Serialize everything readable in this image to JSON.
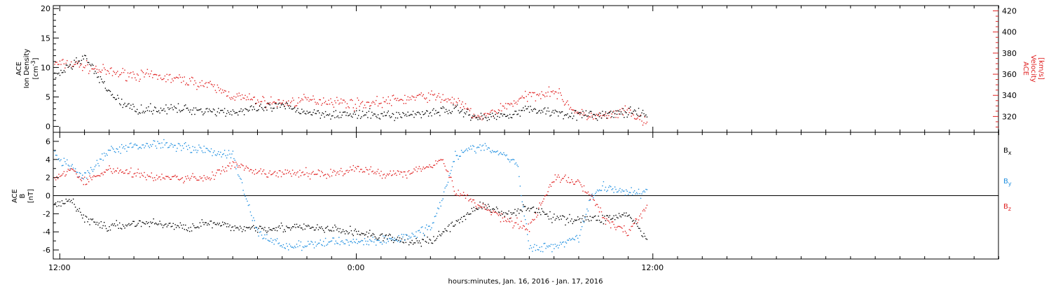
{
  "colors": {
    "black": "#000000",
    "red": "#e02020",
    "blue": "#1f8fe0"
  },
  "xaxis": {
    "label": "hours:minutes, Jan. 16, 2016 - Jan. 17, 2016",
    "ticks": [
      "12:00",
      "0:00",
      "12:00"
    ],
    "tick_hours": [
      12,
      24,
      36
    ],
    "range_hours": [
      11.75,
      50
    ]
  },
  "top_panel": {
    "left_label_line1": "ACE",
    "left_label_line2": "Ion Density",
    "left_label_line3": "[cm",
    "left_label_sup": "-3",
    "left_label_end": "]",
    "right_label_line1": "ACE",
    "right_label_line2": "Velocity",
    "right_label_line3": "[km/s]",
    "left_ticks": [
      "0",
      "5",
      "10",
      "15",
      "20"
    ],
    "right_ticks": [
      "320",
      "340",
      "360",
      "380",
      "400",
      "420"
    ]
  },
  "bottom_panel": {
    "left_label_line1": "ACE",
    "left_label_line2": "B",
    "left_label_line3": "[nT]",
    "ticks": [
      "-6",
      "-4",
      "-2",
      "0",
      "2",
      "4",
      "6"
    ],
    "legend": [
      {
        "name": "B",
        "sub": "x"
      },
      {
        "name": "B",
        "sub": "y"
      },
      {
        "name": "B",
        "sub": "z"
      }
    ]
  },
  "chart_data": [
    {
      "type": "scatter",
      "panel": "top",
      "xlabel": "hours:minutes, Jan. 16, 2016 - Jan. 17, 2016",
      "ylabel": "ACE Ion Density [cm^-3]",
      "ylabel_right": "ACE Velocity [km/s]",
      "ylim": [
        -1,
        20.5
      ],
      "ylim_right": [
        305,
        425
      ],
      "series": [
        {
          "name": "Ion Density",
          "axis": "left",
          "x": [
            11.75,
            12.5,
            13.0,
            13.3,
            13.6,
            14.0,
            14.5,
            15.0,
            16.0,
            17.0,
            18.0,
            19.0,
            20.0,
            21.0,
            22.0,
            23.0,
            24.0,
            25.0,
            26.0,
            27.0,
            28.0,
            29.0,
            30.0,
            31.0,
            32.0,
            33.0,
            34.0,
            35.0,
            35.8
          ],
          "values": [
            8.5,
            10.5,
            12.0,
            10.0,
            8.0,
            6.0,
            4.0,
            3.0,
            3.0,
            3.0,
            2.8,
            2.5,
            3.0,
            3.5,
            2.5,
            2.2,
            2.0,
            2.0,
            2.0,
            2.5,
            3.0,
            1.5,
            2.0,
            3.0,
            2.5,
            2.0,
            2.0,
            2.5,
            2.0
          ]
        },
        {
          "name": "Velocity",
          "axis": "right",
          "x": [
            11.75,
            12.5,
            13.0,
            14.0,
            15.0,
            16.0,
            17.0,
            18.0,
            19.0,
            20.0,
            21.0,
            22.0,
            23.0,
            24.0,
            25.0,
            26.0,
            27.0,
            28.0,
            29.0,
            30.0,
            31.0,
            32.0,
            33.0,
            34.0,
            35.0,
            35.8
          ],
          "values": [
            370,
            370,
            368,
            362,
            360,
            358,
            355,
            350,
            340,
            335,
            333,
            336,
            335,
            332,
            334,
            337,
            340,
            335,
            318,
            330,
            340,
            345,
            322,
            320,
            325,
            312
          ]
        }
      ]
    },
    {
      "type": "scatter",
      "panel": "bottom",
      "xlabel": "hours:minutes, Jan. 16, 2016 - Jan. 17, 2016",
      "ylabel": "ACE B [nT]",
      "ylim": [
        -7,
        7
      ],
      "series": [
        {
          "name": "Bx",
          "x": [
            11.75,
            12.5,
            13.0,
            14.0,
            15.0,
            16.0,
            17.0,
            18.0,
            19.0,
            20.0,
            21.0,
            22.0,
            23.0,
            24.0,
            25.0,
            26.0,
            27.0,
            28.0,
            29.0,
            30.0,
            31.0,
            32.0,
            33.0,
            34.0,
            35.0,
            35.8
          ],
          "values": [
            -1.0,
            -0.5,
            -2.5,
            -3.5,
            -3.0,
            -3.0,
            -3.5,
            -3.0,
            -3.5,
            -3.5,
            -3.5,
            -3.5,
            -3.7,
            -4.0,
            -4.5,
            -5.0,
            -5.0,
            -3.0,
            -1.0,
            -2.0,
            -1.2,
            -2.5,
            -2.5,
            -2.5,
            -2.0,
            -5.0
          ]
        },
        {
          "name": "By",
          "x": [
            11.75,
            12.5,
            13.0,
            14.0,
            15.0,
            16.0,
            17.0,
            18.0,
            19.0,
            19.5,
            20.0,
            21.0,
            22.0,
            23.0,
            24.0,
            25.0,
            26.0,
            27.0,
            27.5,
            28.0,
            29.0,
            30.0,
            30.5,
            31.0,
            32.0,
            33.0,
            33.5,
            34.0,
            35.0,
            35.8
          ],
          "values": [
            4.5,
            3.0,
            2.0,
            5.0,
            5.5,
            5.8,
            5.5,
            5.0,
            4.5,
            0.0,
            -4.0,
            -5.5,
            -5.5,
            -5.0,
            -5.0,
            -5.0,
            -4.5,
            -3.5,
            0.0,
            4.5,
            5.5,
            4.5,
            3.5,
            -5.8,
            -5.5,
            -4.5,
            0.0,
            1.0,
            0.5,
            0.2
          ]
        },
        {
          "name": "Bz",
          "x": [
            11.75,
            12.5,
            13.0,
            14.0,
            15.0,
            16.0,
            17.0,
            18.0,
            19.0,
            20.0,
            21.0,
            22.0,
            23.0,
            24.0,
            25.0,
            26.0,
            27.0,
            27.5,
            28.0,
            29.0,
            30.0,
            31.0,
            32.0,
            33.0,
            33.5,
            34.0,
            35.0,
            35.8
          ],
          "values": [
            2.0,
            3.0,
            1.5,
            3.0,
            2.5,
            2.0,
            2.0,
            2.0,
            3.5,
            2.5,
            2.5,
            2.5,
            2.5,
            3.0,
            2.5,
            2.5,
            3.5,
            4.0,
            0.5,
            -1.0,
            -2.5,
            -3.5,
            2.0,
            1.5,
            0.0,
            -2.5,
            -4.0,
            -1.0
          ]
        }
      ]
    }
  ]
}
